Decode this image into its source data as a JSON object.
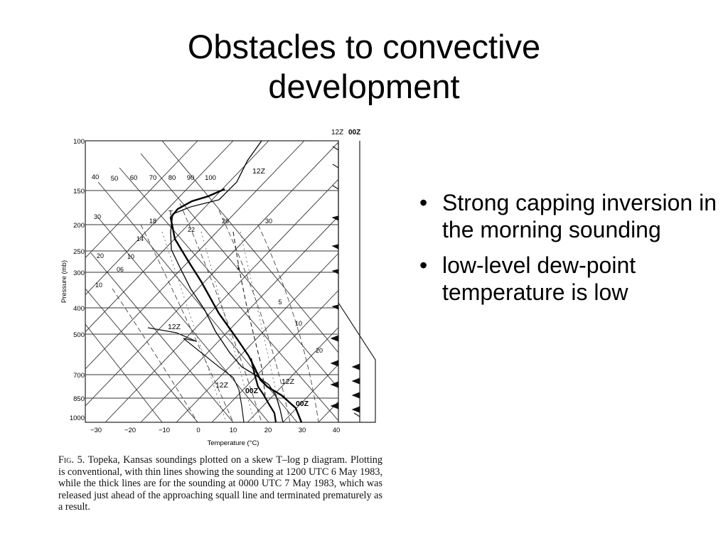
{
  "slide": {
    "title_line1": "Obstacles to convective",
    "title_line2": "development",
    "bullets": [
      "Strong capping inversion in the morning sounding",
      "low-level dew-point temperature is low"
    ]
  },
  "figure": {
    "header_12z": "12Z",
    "header_00z": "00Z",
    "y_axis_label": "Pressure (mb)",
    "x_axis_label": "Temperature (°C)",
    "pressure_ticks": [
      "100",
      "150",
      "200",
      "250",
      "300",
      "400",
      "500",
      "700",
      "850",
      "1000"
    ],
    "temperature_ticks": [
      "−30",
      "−20",
      "−10",
      "0",
      "10",
      "20",
      "30",
      "40"
    ],
    "mixing_ratio_labels": [
      "40",
      "50",
      "60",
      "70",
      "80",
      "90",
      "100"
    ],
    "isotherm_labels": [
      "30",
      "18",
      "14",
      "20",
      "10",
      "06",
      "10",
      "22",
      "26",
      "30",
      "1",
      "5",
      "10",
      "20"
    ],
    "sounding_labels": [
      "12Z",
      "T",
      "12Z",
      "12Z",
      "00Z",
      "12Z",
      "00Z"
    ],
    "caption_lead": "Fig. 5.",
    "caption_text": "Topeka, Kansas soundings plotted on a skew T–log p diagram. Plotting is conventional, with thin lines showing the sounding at 1200 UTC 6 May 1983, while the thick lines are for the sounding at 0000 UTC 7 May 1983, which was released just ahead of the approaching squall line and terminated prematurely as a result."
  }
}
